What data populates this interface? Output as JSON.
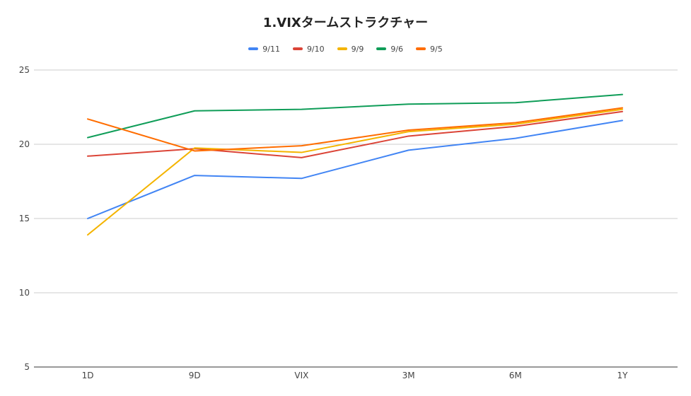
{
  "chart_data": {
    "type": "line",
    "title": "1.VIXタームストラクチャー",
    "xlabel": "",
    "ylabel": "",
    "categories": [
      "1D",
      "9D",
      "VIX",
      "3M",
      "6M",
      "1Y"
    ],
    "ylim": [
      5,
      25
    ],
    "yticks": [
      5,
      10,
      15,
      20,
      25
    ],
    "grid": true,
    "legend_position": "top",
    "series": [
      {
        "name": "9/11",
        "color": "#4285f4",
        "values": [
          15.0,
          17.9,
          17.7,
          19.6,
          20.4,
          21.6
        ]
      },
      {
        "name": "9/10",
        "color": "#db4437",
        "values": [
          19.2,
          19.7,
          19.1,
          20.55,
          21.2,
          22.2
        ]
      },
      {
        "name": "9/9",
        "color": "#f4b400",
        "values": [
          13.9,
          19.75,
          19.45,
          20.85,
          21.35,
          22.35
        ]
      },
      {
        "name": "9/6",
        "color": "#0f9d58",
        "values": [
          20.45,
          22.25,
          22.35,
          22.7,
          22.8,
          23.35
        ]
      },
      {
        "name": "9/5",
        "color": "#ff6d00",
        "values": [
          21.7,
          19.55,
          19.9,
          20.95,
          21.45,
          22.45
        ]
      }
    ]
  }
}
